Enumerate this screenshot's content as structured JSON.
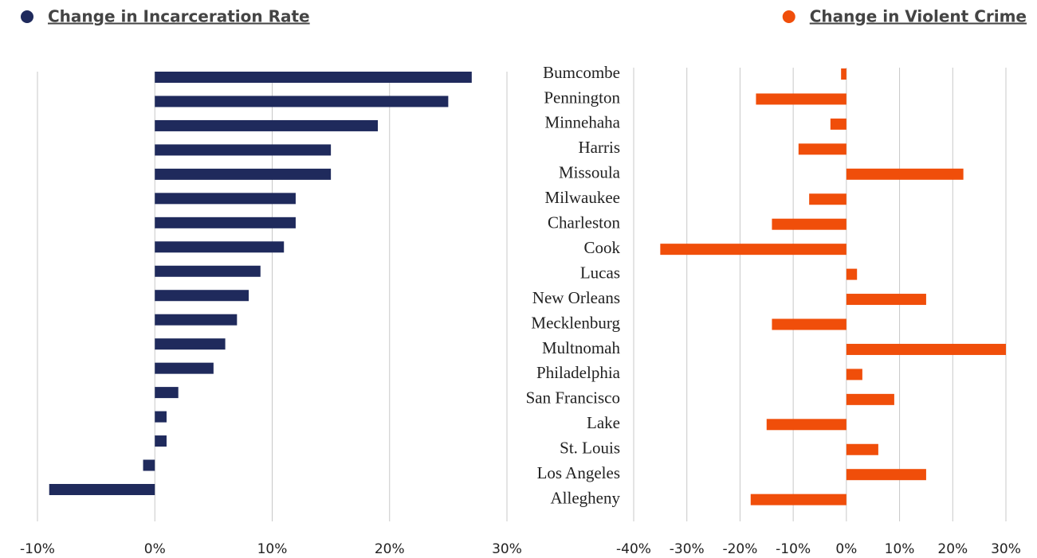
{
  "chart_data": [
    {
      "type": "barh",
      "series": [
        {
          "name": "Change in Incarceration Rate",
          "color": "#1f2a5c",
          "values": [
            27,
            25,
            19,
            15,
            15,
            12,
            12,
            11,
            9,
            8,
            7,
            6,
            5,
            2,
            1,
            1,
            -1,
            -9
          ]
        }
      ],
      "xlim": [
        -10,
        30
      ],
      "xticks": [
        {
          "value": -10,
          "label": "-10%"
        },
        {
          "value": 0,
          "label": "0%"
        },
        {
          "value": 10,
          "label": "10%"
        },
        {
          "value": 20,
          "label": "20%"
        },
        {
          "value": 30,
          "label": "30%"
        }
      ],
      "grid": true
    },
    {
      "type": "barh",
      "categories": [
        "Bumcombe",
        "Pennington",
        "Minnehaha",
        "Harris",
        "Missoula",
        "Milwaukee",
        "Charleston",
        "Cook",
        "Lucas",
        "New Orleans",
        "Mecklenburg",
        "Multnomah",
        "Philadelphia",
        "San Francisco",
        "Lake",
        "St. Louis",
        "Los Angeles",
        "Allegheny"
      ],
      "series": [
        {
          "name": "Change in Violent Crime",
          "color": "#f04e0a",
          "values": [
            -1,
            -17,
            -3,
            -9,
            22,
            -7,
            -14,
            -35,
            2,
            15,
            -14,
            30,
            3,
            9,
            -15,
            6,
            15,
            -18
          ]
        }
      ],
      "xlim": [
        -40,
        30
      ],
      "xticks": [
        {
          "value": -40,
          "label": "-40%"
        },
        {
          "value": -30,
          "label": "-30%"
        },
        {
          "value": -20,
          "label": "-20%"
        },
        {
          "value": -10,
          "label": "-10%"
        },
        {
          "value": 0,
          "label": "0%"
        },
        {
          "value": 10,
          "label": "10%"
        },
        {
          "value": 20,
          "label": "20%"
        },
        {
          "value": 30,
          "label": "30%"
        }
      ],
      "grid": true
    }
  ]
}
